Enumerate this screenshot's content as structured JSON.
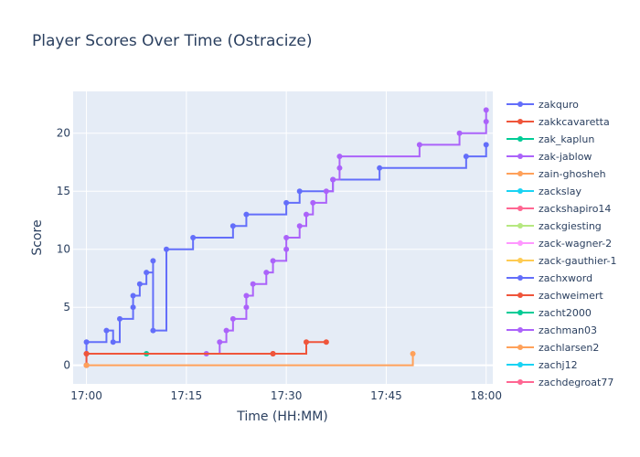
{
  "chart_data": {
    "type": "line",
    "line_shape": "step",
    "title": "Player Scores Over Time (Ostracize)",
    "xlabel": "Time (HH:MM)",
    "ylabel": "Score",
    "x_ticks": [
      "17:00",
      "17:15",
      "17:30",
      "17:45",
      "18:00"
    ],
    "y_ticks": [
      0,
      5,
      10,
      15,
      20
    ],
    "xlim": [
      "16:58",
      "18:01"
    ],
    "ylim": [
      -1.6,
      23.6
    ],
    "grid": true,
    "background": "#e5ecf6",
    "legend_position": "right",
    "legend_entries": [
      {
        "name": "zakquro",
        "color": "#636efa"
      },
      {
        "name": "zakkcavaretta",
        "color": "#ef553b"
      },
      {
        "name": "zak_kaplun",
        "color": "#00cc96"
      },
      {
        "name": "zak-jablow",
        "color": "#ab63fa"
      },
      {
        "name": "zain-ghosheh",
        "color": "#ffa15a"
      },
      {
        "name": "zackslay",
        "color": "#19d3f3"
      },
      {
        "name": "zackshapiro14",
        "color": "#ff6692"
      },
      {
        "name": "zackgiesting",
        "color": "#b6e880"
      },
      {
        "name": "zack-wagner-2",
        "color": "#ff97ff"
      },
      {
        "name": "zack-gauthier-1",
        "color": "#fecb52"
      },
      {
        "name": "zachxword",
        "color": "#636efa"
      },
      {
        "name": "zachweimert",
        "color": "#ef553b"
      },
      {
        "name": "zacht2000",
        "color": "#00cc96"
      },
      {
        "name": "zachman03",
        "color": "#ab63fa"
      },
      {
        "name": "zachlarsen2",
        "color": "#ffa15a"
      },
      {
        "name": "zachj12",
        "color": "#19d3f3"
      },
      {
        "name": "zachdegroat77",
        "color": "#ff6692"
      }
    ],
    "series": [
      {
        "name": "zakquro",
        "color": "#636efa",
        "points": [
          [
            "17:00",
            0
          ],
          [
            "17:00",
            1
          ],
          [
            "17:00",
            2
          ],
          [
            "17:03",
            3
          ],
          [
            "17:04",
            2
          ],
          [
            "17:05",
            4
          ],
          [
            "17:07",
            5
          ],
          [
            "17:07",
            6
          ],
          [
            "17:08",
            7
          ],
          [
            "17:09",
            8
          ],
          [
            "17:10",
            9
          ],
          [
            "17:10",
            3
          ],
          [
            "17:12",
            10
          ],
          [
            "17:16",
            11
          ],
          [
            "17:22",
            12
          ],
          [
            "17:24",
            13
          ],
          [
            "17:30",
            14
          ],
          [
            "17:32",
            15
          ],
          [
            "17:37",
            16
          ],
          [
            "17:44",
            17
          ],
          [
            "17:57",
            18
          ],
          [
            "18:00",
            19
          ]
        ]
      },
      {
        "name": "zakkcavaretta",
        "color": "#ef553b",
        "points": [
          [
            "17:00",
            0
          ],
          [
            "17:00",
            1
          ],
          [
            "17:28",
            1
          ]
        ]
      },
      {
        "name": "zak_kaplun",
        "color": "#00cc96",
        "points": [
          [
            "17:09",
            1
          ]
        ]
      },
      {
        "name": "zak-jablow",
        "color": "#ab63fa",
        "points": [
          [
            "17:18",
            1
          ],
          [
            "17:20",
            2
          ],
          [
            "17:21",
            3
          ],
          [
            "17:22",
            4
          ],
          [
            "17:24",
            5
          ],
          [
            "17:24",
            6
          ],
          [
            "17:25",
            7
          ],
          [
            "17:27",
            8
          ],
          [
            "17:28",
            9
          ],
          [
            "17:30",
            10
          ],
          [
            "17:30",
            11
          ],
          [
            "17:32",
            12
          ],
          [
            "17:33",
            13
          ],
          [
            "17:34",
            14
          ],
          [
            "17:36",
            15
          ],
          [
            "17:37",
            16
          ],
          [
            "17:38",
            17
          ],
          [
            "17:38",
            18
          ],
          [
            "17:50",
            19
          ],
          [
            "17:56",
            20
          ],
          [
            "18:00",
            21
          ],
          [
            "18:00",
            22
          ]
        ]
      },
      {
        "name": "zain-ghosheh",
        "color": "#ffa15a",
        "points": [
          [
            "17:00",
            0
          ],
          [
            "17:49",
            1
          ]
        ]
      },
      {
        "name": "zachweimert",
        "color": "#ef553b",
        "points": [
          [
            "17:00",
            1
          ],
          [
            "17:28",
            1
          ],
          [
            "17:33",
            2
          ],
          [
            "17:36",
            2
          ]
        ]
      }
    ]
  }
}
